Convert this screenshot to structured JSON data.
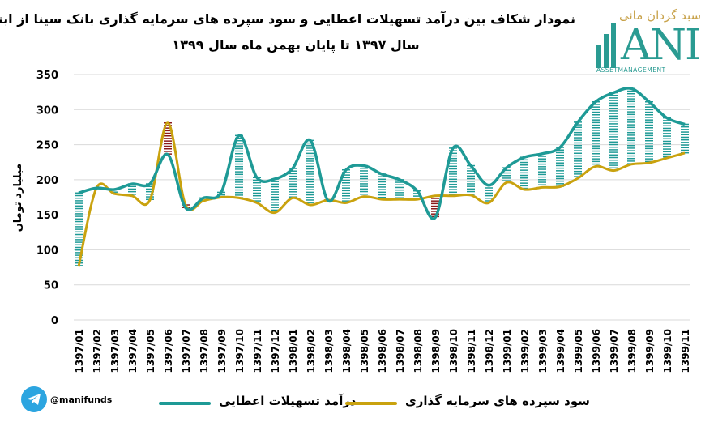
{
  "colors": {
    "income": "#1e9a96",
    "deposit": "#c9a20e",
    "gap_positive": "#1e9a96",
    "gap_negative": "#8b1a1a",
    "grid": "#d9d9d9"
  },
  "title": {
    "line1": "نمودار شکاف بین درآمد تسهیلات اعطایی و سود سپرده های سرمایه گذاری بانک سینا از ابتدای",
    "line2": "سال ۱۳۹۷ تا پایان بهمن ماه سال ۱۳۹۹"
  },
  "logo": {
    "top_text": "سبد گردان مانی",
    "main_text": "ANI",
    "sub_text": "ASSETMANAGEMENT"
  },
  "footer": {
    "handle": "@manifunds",
    "telegram_icon": "telegram-icon"
  },
  "chart_data": {
    "type": "line",
    "ylabel": "میلیارد تومان",
    "ylim": [
      0,
      350
    ],
    "yticks": [
      0,
      50,
      100,
      150,
      200,
      250,
      300,
      350
    ],
    "grid": true,
    "legend_position": "bottom",
    "categories": [
      "1397/01",
      "1397/02",
      "1397/03",
      "1397/04",
      "1397/05",
      "1397/06",
      "1397/07",
      "1397/08",
      "1397/09",
      "1397/10",
      "1397/11",
      "1397/12",
      "1398/01",
      "1398/02",
      "1398/03",
      "1398/04",
      "1398/05",
      "1398/06",
      "1398/07",
      "1398/08",
      "1398/09",
      "1398/10",
      "1398/11",
      "1398/12",
      "1399/01",
      "1399/02",
      "1399/03",
      "1399/04",
      "1399/05",
      "1399/06",
      "1399/07",
      "1399/08",
      "1399/09",
      "1399/10",
      "1399/11"
    ],
    "series": [
      {
        "name": "درآمد تسهیلات اعطایی",
        "values": [
          181,
          188,
          186,
          194,
          194,
          236,
          160,
          174,
          182,
          263,
          203,
          201,
          216,
          256,
          170,
          214,
          220,
          208,
          200,
          184,
          146,
          245,
          220,
          192,
          217,
          232,
          237,
          246,
          282,
          311,
          324,
          330,
          311,
          288,
          279
        ]
      },
      {
        "name": "سود سپرده های سرمایه گذاری",
        "values": [
          76,
          188,
          180,
          177,
          171,
          281,
          164,
          170,
          175,
          174,
          167,
          153,
          174,
          164,
          171,
          167,
          176,
          172,
          172,
          172,
          177,
          177,
          178,
          167,
          196,
          186,
          189,
          190,
          202,
          219,
          213,
          222,
          224,
          231,
          238
        ]
      }
    ]
  }
}
